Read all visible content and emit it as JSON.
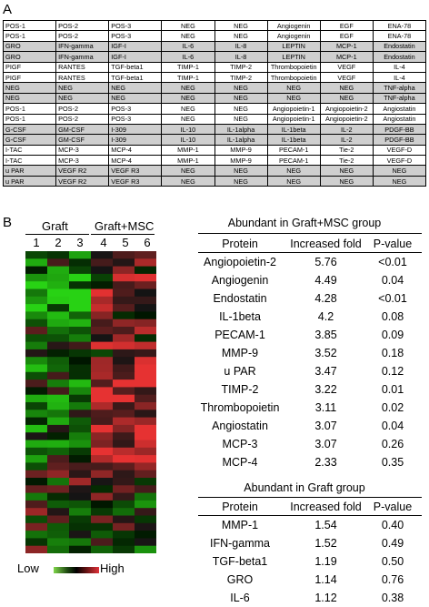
{
  "panelA": {
    "label": "A",
    "rows": [
      [
        "POS-1",
        "POS-2",
        "POS-3",
        "NEG",
        "NEG",
        "Angiogenin",
        "EGF",
        "ENA-78"
      ],
      [
        "POS-1",
        "POS-2",
        "POS-3",
        "NEG",
        "NEG",
        "Angiogenin",
        "EGF",
        "ENA-78"
      ],
      [
        "GRO",
        "IFN-gamma",
        "IGF-I",
        "IL-6",
        "IL-8",
        "LEPTIN",
        "MCP-1",
        "Endostatin"
      ],
      [
        "GRO",
        "IFN-gamma",
        "IGF-I",
        "IL-6",
        "IL-8",
        "LEPTIN",
        "MCP-1",
        "Endostatin"
      ],
      [
        "PIGF",
        "RANTES",
        "TGF-beta1",
        "TIMP-1",
        "TIMP-2",
        "Thrombopoietin",
        "VEGF",
        "IL-4"
      ],
      [
        "PIGF",
        "RANTES",
        "TGF-beta1",
        "TIMP-1",
        "TIMP-2",
        "Thrombopoietin",
        "VEGF",
        "IL-4"
      ],
      [
        "NEG",
        "NEG",
        "NEG",
        "NEG",
        "NEG",
        "NEG",
        "NEG",
        "TNF-alpha"
      ],
      [
        "NEG",
        "NEG",
        "NEG",
        "NEG",
        "NEG",
        "NEG",
        "NEG",
        "TNF-alpha"
      ],
      [
        "POS-1",
        "POS-2",
        "POS-3",
        "NEG",
        "NEG",
        "Angiopoietin-1",
        "Angiopoietin-2",
        "Angiostatin"
      ],
      [
        "POS-1",
        "POS-2",
        "POS-3",
        "NEG",
        "NEG",
        "Angiopoietin-1",
        "Angiopoietin-2",
        "Angiostatin"
      ],
      [
        "G-CSF",
        "GM-CSF",
        "I-309",
        "IL-10",
        "IL-1alpha",
        "IL-1beta",
        "IL-2",
        "PDGF-BB"
      ],
      [
        "G-CSF",
        "GM-CSF",
        "I-309",
        "IL-10",
        "IL-1alpha",
        "IL-1beta",
        "IL-2",
        "PDGF-BB"
      ],
      [
        "I-TAC",
        "MCP-3",
        "MCP-4",
        "MMP-1",
        "MMP-9",
        "PECAM-1",
        "Tie-2",
        "VEGF-D"
      ],
      [
        "I-TAC",
        "MCP-3",
        "MCP-4",
        "MMP-1",
        "MMP-9",
        "PECAM-1",
        "Tie-2",
        "VEGF-D"
      ],
      [
        "u PAR",
        "VEGF R2",
        "VEGF R3",
        "NEG",
        "NEG",
        "NEG",
        "NEG",
        "NEG"
      ],
      [
        "u PAR",
        "VEGF R2",
        "VEGF R3",
        "NEG",
        "NEG",
        "NEG",
        "NEG",
        "NEG"
      ]
    ],
    "gray_rows": [
      2,
      3,
      6,
      7,
      10,
      11,
      14,
      15
    ]
  },
  "panelB": {
    "label": "B",
    "group_graft": "Graft",
    "group_msc": "Graft+MSC",
    "lanes": [
      "1",
      "2",
      "3",
      "4",
      "5",
      "6"
    ],
    "legend_low": "Low",
    "legend_high": "High",
    "colors": {
      "low": "#7fd64a",
      "mid": "#000000",
      "high": "#e0323a"
    },
    "table1": {
      "title": "Abundant in Graft+MSC group",
      "headers": [
        "Protein",
        "Increased fold",
        "P-value"
      ],
      "rows": [
        [
          "Angiopoietin-2",
          "5.76",
          "<0.01"
        ],
        [
          "Angiogenin",
          "4.49",
          "0.04"
        ],
        [
          "Endostatin",
          "4.28",
          "<0.01"
        ],
        [
          "IL-1beta",
          "4.2",
          "0.08"
        ],
        [
          "PECAM-1",
          "3.85",
          "0.09"
        ],
        [
          "MMP-9",
          "3.52",
          "0.18"
        ],
        [
          "u PAR",
          "3.47",
          "0.12"
        ],
        [
          "TIMP-2",
          "3.22",
          "0.01"
        ],
        [
          "Thrombopoietin",
          "3.11",
          "0.02"
        ],
        [
          "Angiostatin",
          "3.07",
          "0.04"
        ],
        [
          "MCP-3",
          "3.07",
          "0.26"
        ],
        [
          "MCP-4",
          "2.33",
          "0.35"
        ]
      ]
    },
    "table2": {
      "title": "Abundant in Graft group",
      "headers": [
        "Protein",
        "Increased fold",
        "P-value"
      ],
      "rows": [
        [
          "MMP-1",
          "1.54",
          "0.40"
        ],
        [
          "IFN-gamma",
          "1.52",
          "0.49"
        ],
        [
          "TGF-beta1",
          "1.19",
          "0.50"
        ],
        [
          "GRO",
          "1.14",
          "0.76"
        ],
        [
          "IL-6",
          "1.12",
          "0.38"
        ]
      ]
    }
  }
}
